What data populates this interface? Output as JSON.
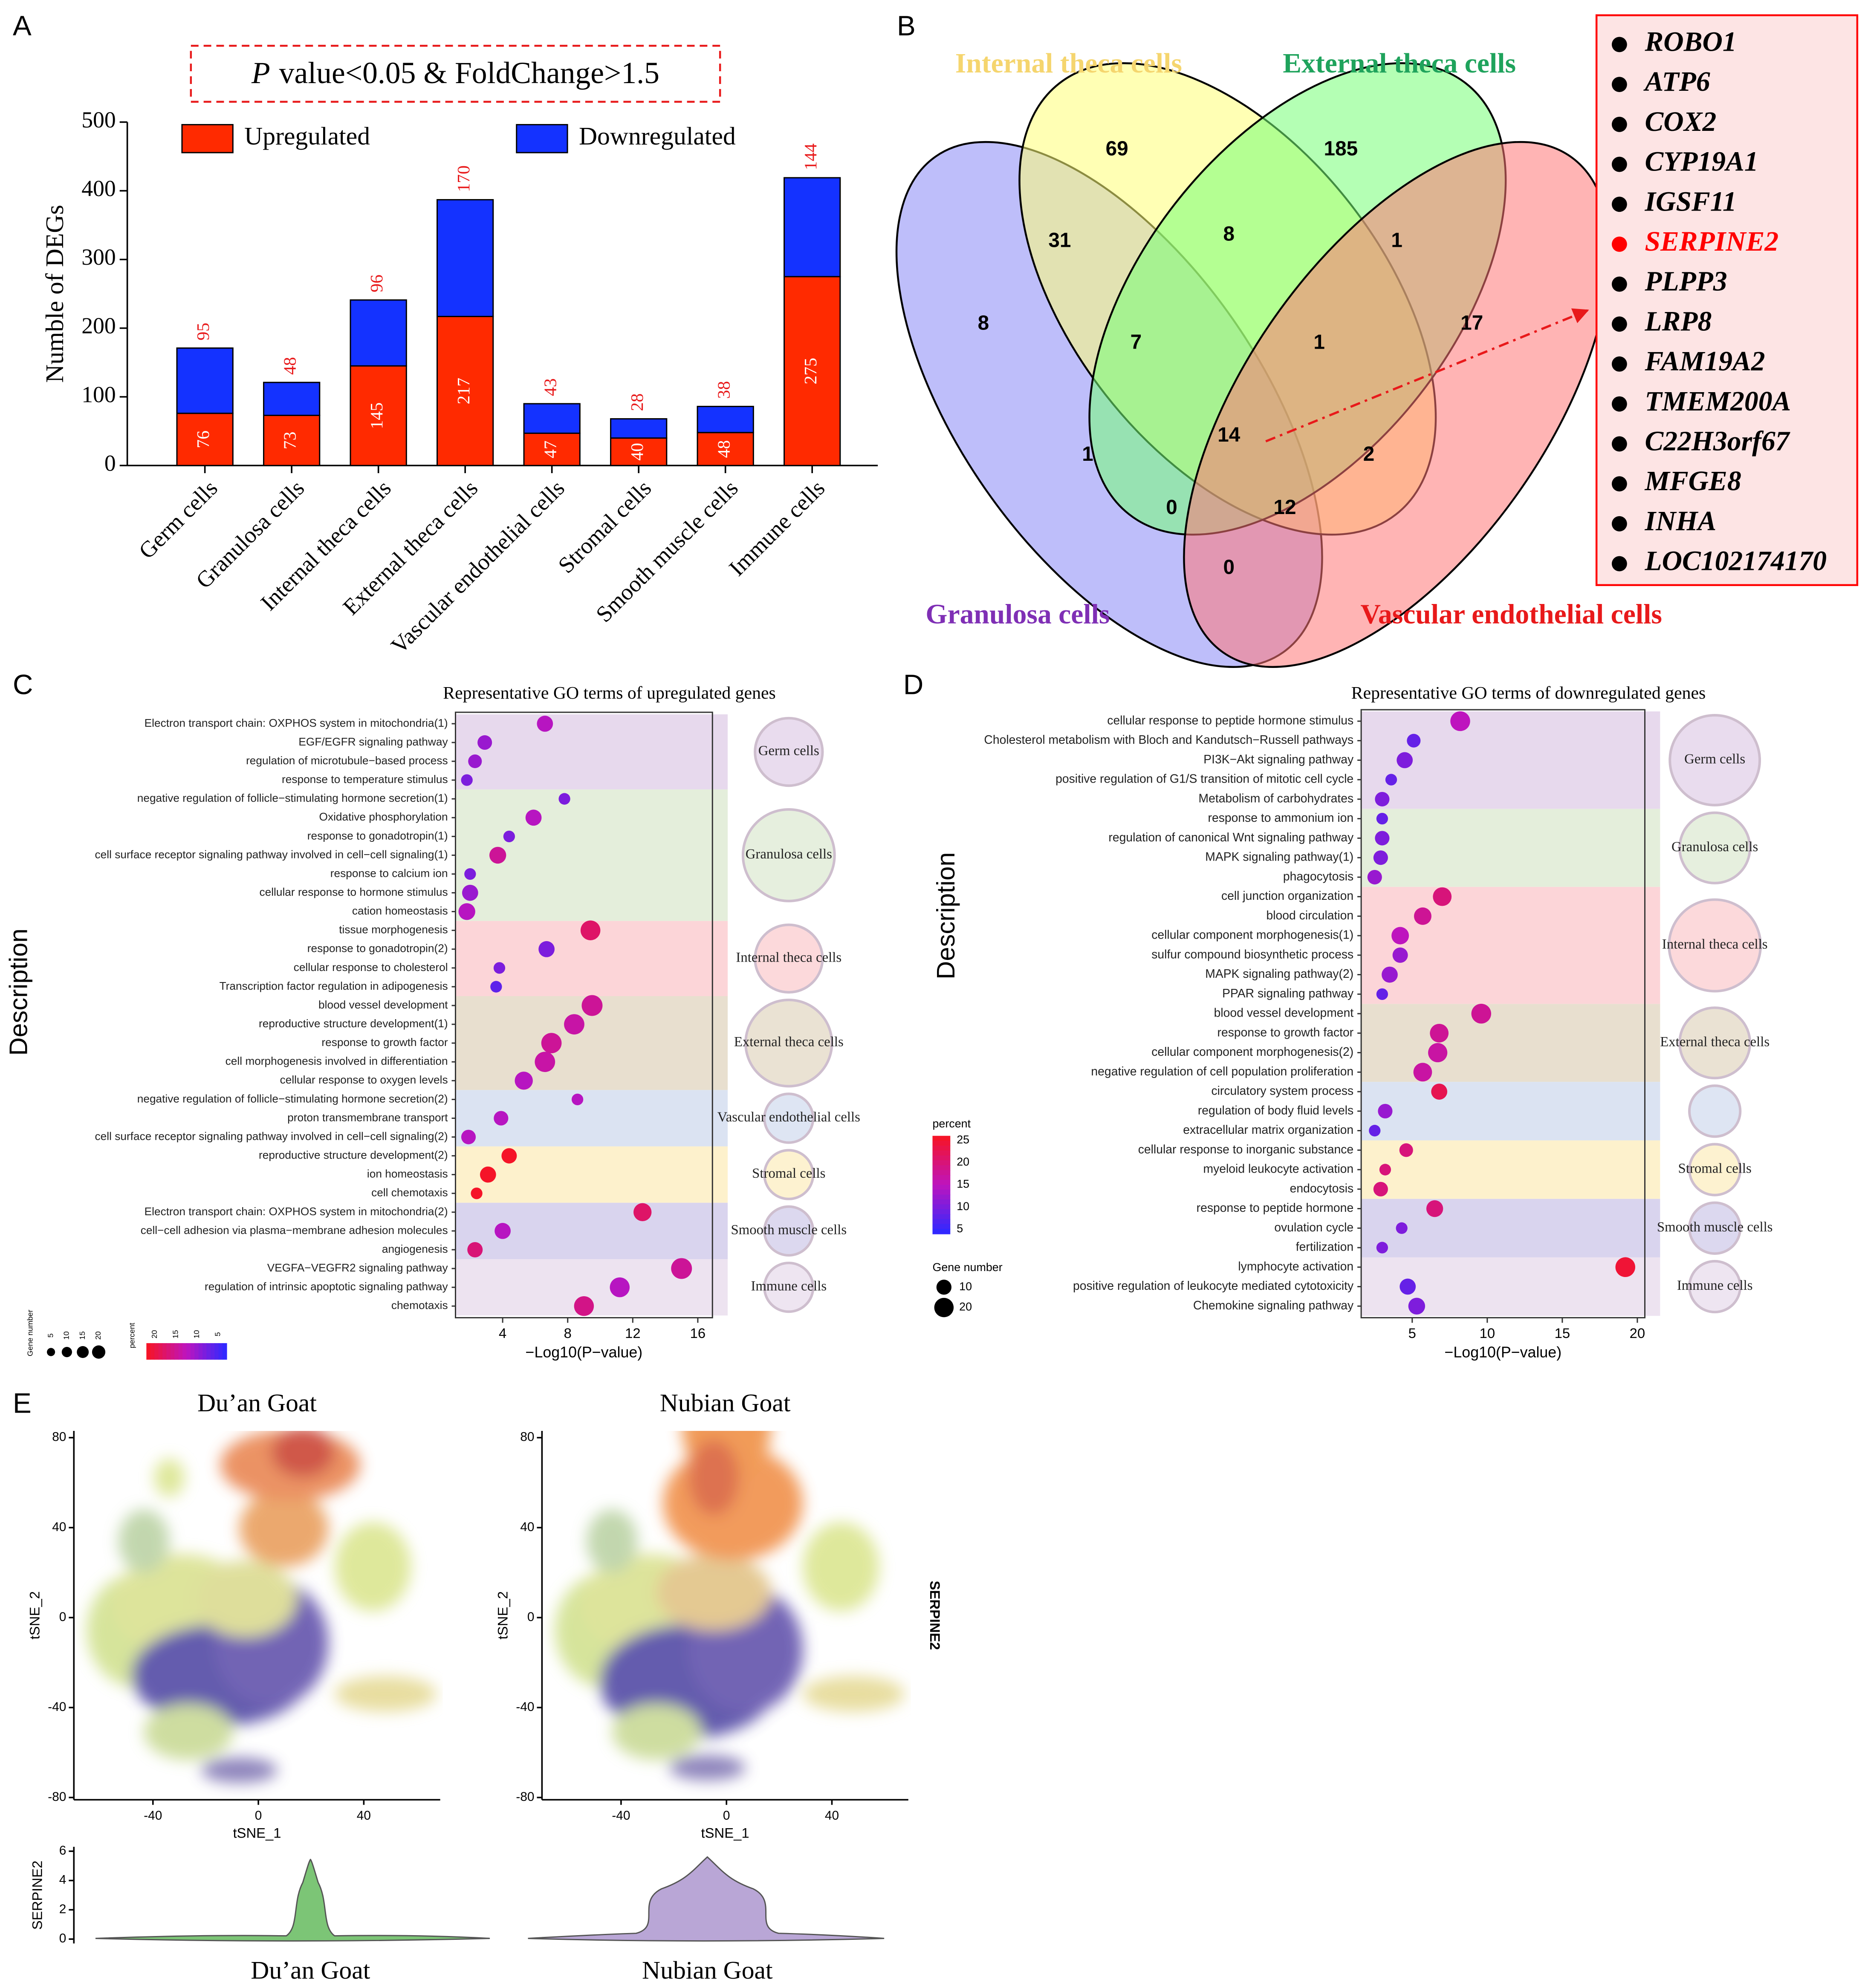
{
  "panel_labels": [
    "A",
    "B",
    "C",
    "D",
    "E"
  ],
  "chart_data": [
    {
      "type": "stacked_bar",
      "title_italic": "P",
      "title": "value<0.05 & FoldChange>1.5",
      "ylabel": "Numble of DEGs",
      "categories": [
        "Germ cells",
        "Granulosa cells",
        "Internal theca cells",
        "External theca cells",
        "Vascular endothelial cells",
        "Stromal cells",
        "Smooth muscle cells",
        "Immune cells"
      ],
      "series": [
        {
          "name": "Upregulated",
          "color": "#ff2a00",
          "values": [
            76,
            73,
            145,
            217,
            47,
            40,
            48,
            275
          ]
        },
        {
          "name": "Downregulated",
          "color": "#1432ff",
          "values": [
            95,
            48,
            96,
            170,
            43,
            28,
            38,
            144
          ]
        }
      ],
      "ylim": [
        0,
        500
      ],
      "yticks": [
        0,
        100,
        200,
        300,
        400,
        500
      ]
    },
    {
      "type": "dot",
      "title": "Representative GO terms of upregulated genes",
      "ylabel": "Description",
      "xlabel": "−Log10(P−value)",
      "xlim": [
        1.1,
        16.9
      ],
      "xticks": [
        4,
        8,
        12,
        16
      ],
      "percent_lim": [
        3,
        22
      ],
      "color_legend": {
        "title": "percent",
        "ticks": [
          20,
          15,
          10,
          5
        ]
      },
      "size_legend": {
        "title": "Gene number",
        "ticks": [
          5,
          10,
          15,
          20
        ]
      },
      "groups": [
        {
          "name": "Germ cells",
          "color": "#e7d9ed",
          "terms": [
            "Electron transport chain: OXPHOS system in mitochondria(1)",
            "EGF/EGFR signaling pathway",
            "regulation of microtubule−based process",
            "response to temperature stimulus"
          ],
          "values": [
            6.6,
            2.9,
            2.3,
            1.8
          ],
          "sizes": [
            8,
            6,
            5,
            3
          ],
          "percent": [
            12,
            10,
            10,
            8
          ]
        },
        {
          "name": "Granulosa cells",
          "color": "#e4eedb",
          "terms": [
            "negative regulation of follicle−stimulating hormone secretion(1)",
            "Oxidative phosphorylation",
            "response to gonadotropin(1)",
            "cell surface receptor signaling pathway involved in cell−cell signaling(1)",
            "response to calcium ion",
            "cellular response to hormone stimulus",
            "cation homeostasis"
          ],
          "values": [
            7.8,
            5.9,
            4.4,
            3.7,
            2.0,
            2.0,
            1.8
          ],
          "sizes": [
            3,
            8,
            3,
            9,
            3,
            8,
            9
          ],
          "percent": [
            8,
            12,
            8,
            15,
            8,
            10,
            12
          ]
        },
        {
          "name": "Internal theca cells",
          "color": "#fcd5d8",
          "terms": [
            "tissue morphogenesis",
            "response to gonadotropin(2)",
            "cellular response to cholesterol",
            "Transcription factor regulation in adipogenesis"
          ],
          "values": [
            9.4,
            6.7,
            3.8,
            3.6
          ],
          "sizes": [
            14,
            8,
            3,
            3
          ],
          "percent": [
            18,
            8,
            8,
            6
          ]
        },
        {
          "name": "External theca cells",
          "color": "#e8dfcf",
          "terms": [
            "blood vessel development",
            "reproductive structure development(1)",
            "response to growth factor",
            "cell morphogenesis involved in differentiation",
            "cellular response to oxygen levels"
          ],
          "values": [
            9.5,
            8.4,
            7.0,
            6.6,
            5.3
          ],
          "sizes": [
            16,
            15,
            15,
            15,
            11
          ],
          "percent": [
            15,
            14,
            15,
            14,
            12
          ]
        },
        {
          "name": "Vascular endothelial cells",
          "color": "#dbe3f2",
          "terms": [
            "negative regulation of follicle−stimulating hormone secretion(2)",
            "proton transmembrane transport",
            "cell surface receptor signaling pathway involved in cell−cell signaling(2)"
          ],
          "values": [
            8.6,
            3.9,
            1.9
          ],
          "sizes": [
            3,
            6,
            6
          ],
          "percent": [
            12,
            12,
            12
          ]
        },
        {
          "name": "Stromal cells",
          "color": "#fdf1cc",
          "terms": [
            "reproductive structure development(2)",
            "ion homeostasis",
            "cell chemotaxis"
          ],
          "values": [
            4.4,
            3.1,
            2.4
          ],
          "sizes": [
            7,
            8,
            3
          ],
          "percent": [
            22,
            22,
            22
          ]
        },
        {
          "name": "Smooth muscle cells",
          "color": "#d9d4ee",
          "terms": [
            "Electron transport chain: OXPHOS system in mitochondria(2)",
            "cell−cell adhesion via plasma−membrane adhesion molecules",
            "angiogenesis"
          ],
          "values": [
            12.6,
            4.0,
            2.3
          ],
          "sizes": [
            11,
            8,
            7
          ],
          "percent": [
            18,
            12,
            17
          ]
        },
        {
          "name": "Immune cells",
          "color": "#ede3f0",
          "terms": [
            "VEGFA−VEGFR2 signaling pathway",
            "regulation of intrinsic apoptotic signaling pathway",
            "chemotaxis"
          ],
          "values": [
            15.0,
            11.2,
            9.0
          ],
          "sizes": [
            16,
            14,
            14
          ],
          "percent": [
            15,
            12,
            16
          ]
        }
      ]
    },
    {
      "type": "dot",
      "title": "Representative GO terms of downregulated genes",
      "ylabel": "Description",
      "xlabel": "−Log10(P−value)",
      "xlim": [
        1.6,
        20.5
      ],
      "xticks": [
        5,
        10,
        15,
        20
      ],
      "percent_lim": [
        4,
        26
      ],
      "color_legend": {
        "title": "percent",
        "ticks": [
          25,
          20,
          15,
          10,
          5
        ]
      },
      "size_legend": {
        "title": "Gene number",
        "ticks": [
          10,
          20
        ]
      },
      "groups": [
        {
          "name": "Germ cells",
          "color": "#e7d9ed",
          "terms": [
            "cellular response to peptide hormone stimulus",
            "Cholesterol metabolism with Bloch and Kandutsch−Russell pathways",
            "PI3K−Akt signaling pathway",
            "positive regulation of G1/S transition of mitotic cell cycle",
            "Metabolism of carbohydrates"
          ],
          "values": [
            8.2,
            5.1,
            4.5,
            3.6,
            3.0
          ],
          "sizes": [
            14,
            5,
            8,
            3,
            6
          ],
          "percent": [
            15,
            8,
            10,
            8,
            10
          ]
        },
        {
          "name": "Granulosa cells",
          "color": "#e4eedb",
          "terms": [
            "response to ammonium ion",
            "regulation of canonical Wnt signaling pathway",
            "MAPK signaling pathway(1)",
            "phagocytosis"
          ],
          "values": [
            3.0,
            3.0,
            2.9,
            2.5
          ],
          "sizes": [
            3,
            6,
            6,
            6
          ],
          "percent": [
            8,
            10,
            10,
            12
          ]
        },
        {
          "name": "Internal theca cells",
          "color": "#fcd5d8",
          "terms": [
            "cell junction organization",
            "blood circulation",
            "cellular component morphogenesis(1)",
            "sulfur compound biosynthetic process",
            "MAPK signaling pathway(2)",
            "PPAR signaling pathway"
          ],
          "values": [
            7.0,
            5.7,
            4.2,
            4.2,
            3.5,
            3.0
          ],
          "sizes": [
            12,
            10,
            10,
            7,
            8,
            3
          ],
          "percent": [
            20,
            18,
            15,
            12,
            12,
            8
          ]
        },
        {
          "name": "External theca cells",
          "color": "#e8dfcf",
          "terms": [
            "blood vessel development",
            "response to growth factor",
            "cellular component morphogenesis(2)",
            "negative regulation of cell population proliferation"
          ],
          "values": [
            9.6,
            6.8,
            6.7,
            5.7
          ],
          "sizes": [
            14,
            12,
            13,
            12
          ],
          "percent": [
            18,
            18,
            17,
            17
          ]
        },
        {
          "name": null,
          "color": "#dbe3f2",
          "terms": [
            "circulatory system process",
            "regulation of body fluid levels",
            "extracellular matrix organization"
          ],
          "values": [
            6.8,
            3.2,
            2.5
          ],
          "sizes": [
            8,
            6,
            3
          ],
          "percent": [
            23,
            12,
            8
          ]
        },
        {
          "name": "Stromal cells",
          "color": "#fdf1cc",
          "terms": [
            "cellular response to inorganic substance",
            "myeloid leukocyte activation",
            "endocytosis"
          ],
          "values": [
            4.6,
            3.2,
            2.9
          ],
          "sizes": [
            5,
            3,
            6
          ],
          "percent": [
            20,
            20,
            20
          ]
        },
        {
          "name": "Smooth muscle cells",
          "color": "#d9d4ee",
          "terms": [
            "response to peptide hormone",
            "ovulation cycle",
            "fertilization"
          ],
          "values": [
            6.5,
            4.3,
            3.0
          ],
          "sizes": [
            9,
            3,
            3
          ],
          "percent": [
            20,
            10,
            10
          ]
        },
        {
          "name": "Immune cells",
          "color": "#ede3f0",
          "terms": [
            "lymphocyte activation",
            "positive regulation of leukocyte mediated cytotoxicity",
            "Chemokine signaling pathway"
          ],
          "values": [
            19.2,
            4.7,
            5.3
          ],
          "sizes": [
            14,
            8,
            9
          ],
          "percent": [
            25,
            8,
            10
          ]
        }
      ]
    },
    {
      "type": "scatter",
      "title": "Du’an Goat",
      "xlabel": "tSNE_1",
      "ylabel": "tSNE_2",
      "xlim": [
        -70,
        69
      ],
      "ylim": [
        -81,
        83
      ],
      "xticks": [
        -40,
        0,
        40
      ],
      "yticks": [
        -80,
        -40,
        0,
        40,
        80
      ]
    },
    {
      "type": "scatter",
      "title": "Nubian Goat",
      "xlabel": "tSNE_1",
      "ylabel": "tSNE_2",
      "side_label": "SERPINE2",
      "xlim": [
        -70,
        69
      ],
      "ylim": [
        -81,
        83
      ],
      "xticks": [
        -40,
        0,
        40
      ],
      "yticks": [
        -80,
        -40,
        0,
        40,
        80
      ]
    },
    {
      "type": "violin",
      "ylabel": "SERPINE2",
      "categories": [
        "Du’an Goat",
        "Nubian Goat"
      ],
      "colors": [
        "#7cc576",
        "#b9a6d6"
      ],
      "ylim": [
        -0.3,
        6.3
      ],
      "yticks": [
        0,
        2,
        4,
        6
      ]
    }
  ],
  "venn": {
    "sets": [
      {
        "name": "Granulosa cells",
        "color": "#7f2fb5"
      },
      {
        "name": "Internal theca cells",
        "color": "#f5d56e"
      },
      {
        "name": "External theca cells",
        "color": "#1fa35c"
      },
      {
        "name": "Vascular endothelial cells",
        "color": "#e8191a"
      }
    ],
    "counts": [
      69,
      185,
      31,
      8,
      1,
      8,
      7,
      1,
      17,
      14,
      1,
      2,
      0,
      12,
      0
    ]
  },
  "gene_list": [
    {
      "name": "ROBO1",
      "color": "#000000"
    },
    {
      "name": "ATP6",
      "color": "#000000"
    },
    {
      "name": "COX2",
      "color": "#000000"
    },
    {
      "name": "CYP19A1",
      "color": "#000000"
    },
    {
      "name": "IGSF11",
      "color": "#000000"
    },
    {
      "name": "SERPINE2",
      "color": "#ff0000"
    },
    {
      "name": "PLPP3",
      "color": "#000000"
    },
    {
      "name": "LRP8",
      "color": "#000000"
    },
    {
      "name": "FAM19A2",
      "color": "#000000"
    },
    {
      "name": "TMEM200A",
      "color": "#000000"
    },
    {
      "name": "C22H3orf67",
      "color": "#000000"
    },
    {
      "name": "MFGE8",
      "color": "#000000"
    },
    {
      "name": "INHA",
      "color": "#000000"
    },
    {
      "name": "LOC102174170",
      "color": "#000000"
    }
  ]
}
